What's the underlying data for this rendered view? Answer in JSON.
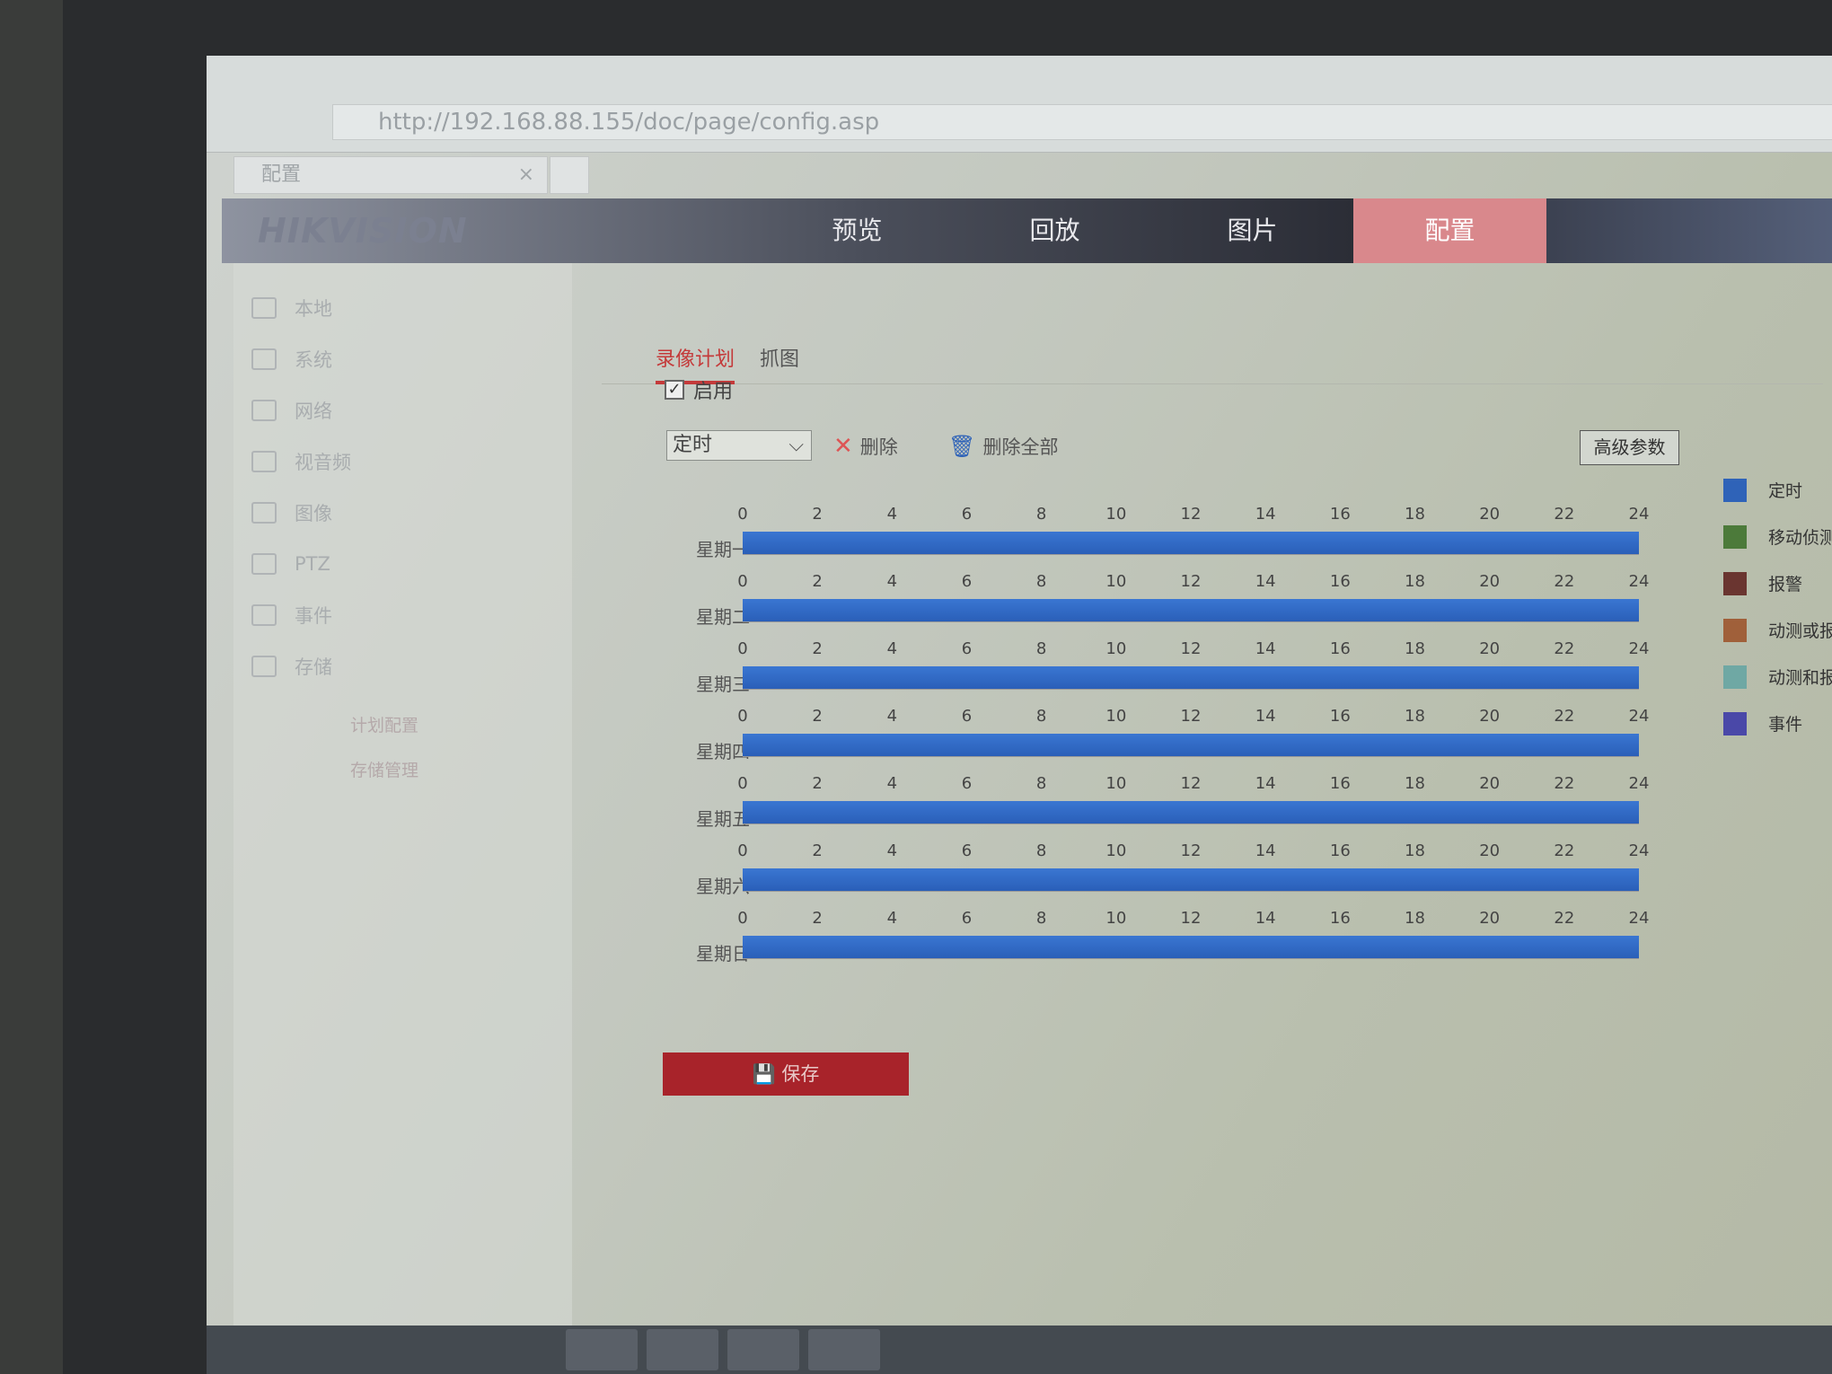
{
  "browser": {
    "url": "http://192.168.88.155/doc/page/config.asp",
    "tab_title": "配置",
    "tab_close": "×"
  },
  "header": {
    "logo": "HIKVISION",
    "nav": [
      {
        "label": "预览",
        "active": false
      },
      {
        "label": "回放",
        "active": false
      },
      {
        "label": "图片",
        "active": false
      },
      {
        "label": "配置",
        "active": true
      }
    ]
  },
  "sidebar": {
    "items": [
      "本地",
      "系统",
      "网络",
      "视音频",
      "图像",
      "PTZ",
      "事件",
      "存储"
    ],
    "sub_items": [
      "计划配置",
      "存储管理"
    ]
  },
  "tabs": [
    {
      "label": "录像计划",
      "active": true
    },
    {
      "label": "抓图",
      "active": false
    }
  ],
  "enable": {
    "label": "启用",
    "checked": true
  },
  "toolbar": {
    "type_select": "定时",
    "delete": "删除",
    "delete_all": "删除全部",
    "advanced": "高级参数"
  },
  "schedule": {
    "hours": [
      "0",
      "2",
      "4",
      "6",
      "8",
      "10",
      "12",
      "14",
      "16",
      "18",
      "20",
      "22",
      "24"
    ],
    "days": [
      {
        "label": "星期一",
        "start": 0,
        "end": 24
      },
      {
        "label": "星期二",
        "start": 0,
        "end": 24
      },
      {
        "label": "星期三",
        "start": 0,
        "end": 24
      },
      {
        "label": "星期四",
        "start": 0,
        "end": 24
      },
      {
        "label": "星期五",
        "start": 0,
        "end": 24
      },
      {
        "label": "星期六",
        "start": 0,
        "end": 24
      },
      {
        "label": "星期日",
        "start": 0,
        "end": 24
      }
    ]
  },
  "legend": [
    {
      "label": "定时",
      "color": "#2f63b8"
    },
    {
      "label": "移动侦测",
      "color": "#4c7a3a"
    },
    {
      "label": "报警",
      "color": "#6a3530"
    },
    {
      "label": "动测或报警",
      "color": "#a0603a"
    },
    {
      "label": "动测和报警",
      "color": "#6fa8a4"
    },
    {
      "label": "事件",
      "color": "#4a48a8"
    }
  ],
  "save_label": "保存"
}
